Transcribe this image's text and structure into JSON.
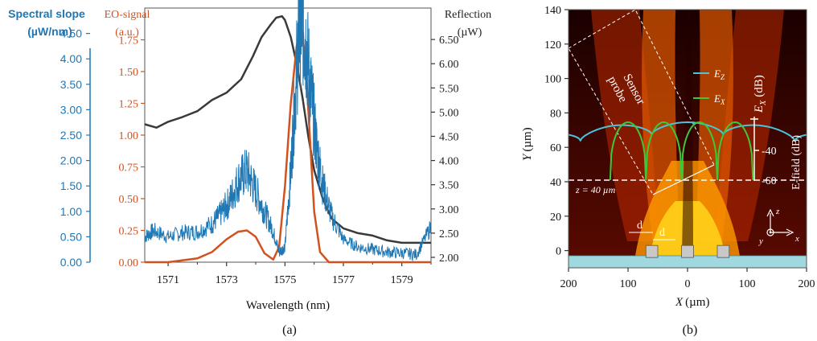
{
  "chart_data": [
    {
      "type": "line",
      "panel_label": "(a)",
      "xlabel": "Wavelength (nm)",
      "xlim": [
        1570.2,
        1580.0
      ],
      "x_ticks": [
        1571,
        1573,
        1575,
        1577,
        1579
      ],
      "axes": [
        {
          "id": "slope",
          "label_line1": "Spectral slope",
          "label_line2": "(µW/nm)",
          "color": "#1f77b4",
          "ylim": [
            0,
            5.0
          ],
          "ticks": [
            "0.00",
            "0.50",
            "1.00",
            "1.50",
            "2.00",
            "2.50",
            "3.00",
            "3.50",
            "4.00",
            "4.50"
          ]
        },
        {
          "id": "eo",
          "label_line1": "EO-signal",
          "label_line2": "(a.u.)",
          "color": "#d2521f",
          "ylim": [
            0,
            2.0
          ],
          "ticks": [
            "0.00",
            "0.25",
            "0.50",
            "0.75",
            "1.00",
            "1.25",
            "1.50",
            "1.75"
          ]
        },
        {
          "id": "refl",
          "label_line1": "Reflection",
          "label_line2": "(µW)",
          "color": "#333333",
          "ylim": [
            1.9,
            7.15
          ],
          "ticks": [
            "2.00",
            "2.50",
            "3.00",
            "3.50",
            "4.00",
            "4.50",
            "5.00",
            "5.50",
            "6.00",
            "6.50"
          ]
        }
      ],
      "series": [
        {
          "axis": "refl",
          "color": "#3a3a3a",
          "x": [
            1570.2,
            1570.6,
            1571.0,
            1571.5,
            1572.0,
            1572.5,
            1573.0,
            1573.5,
            1573.9,
            1574.2,
            1574.5,
            1574.7,
            1574.9,
            1575.0,
            1575.2,
            1575.4,
            1575.6,
            1575.8,
            1576.0,
            1576.3,
            1576.6,
            1577.0,
            1577.5,
            1578.0,
            1578.5,
            1579.0,
            1579.5,
            1580.0
          ],
          "y": [
            4.75,
            4.68,
            4.8,
            4.9,
            5.02,
            5.25,
            5.4,
            5.68,
            6.15,
            6.55,
            6.8,
            6.95,
            6.98,
            6.9,
            6.55,
            6.0,
            5.3,
            4.5,
            3.8,
            3.2,
            2.8,
            2.6,
            2.5,
            2.45,
            2.35,
            2.3,
            2.3,
            2.3
          ]
        },
        {
          "axis": "eo",
          "color": "#d2521f",
          "x": [
            1570.2,
            1571.0,
            1572.0,
            1572.5,
            1573.0,
            1573.4,
            1573.7,
            1574.0,
            1574.3,
            1574.6,
            1574.8,
            1575.0,
            1575.2,
            1575.4,
            1575.55,
            1575.7,
            1575.85,
            1576.0,
            1576.2,
            1576.5,
            1577.0,
            1578.0,
            1580.0
          ],
          "y": [
            0.0,
            0.0,
            0.03,
            0.08,
            0.18,
            0.24,
            0.25,
            0.2,
            0.07,
            0.02,
            0.12,
            0.6,
            1.25,
            1.7,
            1.86,
            1.6,
            1.0,
            0.4,
            0.08,
            0.0,
            0.0,
            0.0,
            0.0
          ]
        },
        {
          "axis": "slope",
          "color": "#1f77b4",
          "x": [
            1570.2,
            1570.5,
            1571.0,
            1571.5,
            1572.0,
            1572.5,
            1572.8,
            1573.1,
            1573.4,
            1573.7,
            1574.0,
            1574.3,
            1574.6,
            1574.8,
            1575.0,
            1575.2,
            1575.4,
            1575.55,
            1575.7,
            1575.9,
            1576.1,
            1576.3,
            1576.6,
            1577.0,
            1577.5,
            1578.0,
            1578.5,
            1579.0,
            1579.5,
            1580.0
          ],
          "y": [
            0.5,
            0.62,
            0.5,
            0.58,
            0.6,
            0.75,
            0.95,
            1.2,
            1.6,
            1.8,
            1.4,
            1.0,
            0.6,
            0.2,
            0.3,
            1.8,
            3.8,
            4.9,
            4.4,
            3.3,
            2.2,
            1.5,
            0.9,
            0.45,
            0.3,
            0.25,
            0.2,
            0.18,
            0.15,
            0.7
          ]
        }
      ]
    },
    {
      "type": "heatmap",
      "panel_label": "(b)",
      "xlabel": "X",
      "xlabel_unit": "(µm)",
      "ylabel": "Y",
      "ylabel_unit": "(µm)",
      "xlim": [
        -200,
        200
      ],
      "ylim": [
        -10,
        140
      ],
      "x_ticks": [
        "200",
        "100",
        "0",
        "100",
        "200"
      ],
      "x_tick_values": [
        -200,
        -100,
        0,
        100,
        200
      ],
      "y_ticks": [
        "0",
        "20",
        "40",
        "60",
        "80",
        "100",
        "120",
        "140"
      ],
      "y_tick_values": [
        0,
        20,
        40,
        60,
        80,
        100,
        120,
        140
      ],
      "annotations": {
        "sensor_line1": "Sensor",
        "sensor_line2": "probe",
        "z_label": "z = 40 µm",
        "d_label": "d",
        "legend_ez": "E",
        "legend_ez_sub": "Z",
        "legend_ex": "E",
        "legend_ex_sub": "X",
        "side_label_top": "E",
        "side_label_top_sub": "X",
        "side_label_top_unit": "(dB)",
        "side_label_bottom": "E-field (dB)",
        "db_ticks": [
          "-40",
          "-60"
        ],
        "axis_z": "z",
        "axis_y": "y",
        "axis_x": "x"
      },
      "electrode_centers_um": [
        -60,
        0,
        60
      ],
      "electrode_width_um": 20,
      "ez_color": "#4cc3d9",
      "ex_color": "#3fc73a"
    }
  ]
}
